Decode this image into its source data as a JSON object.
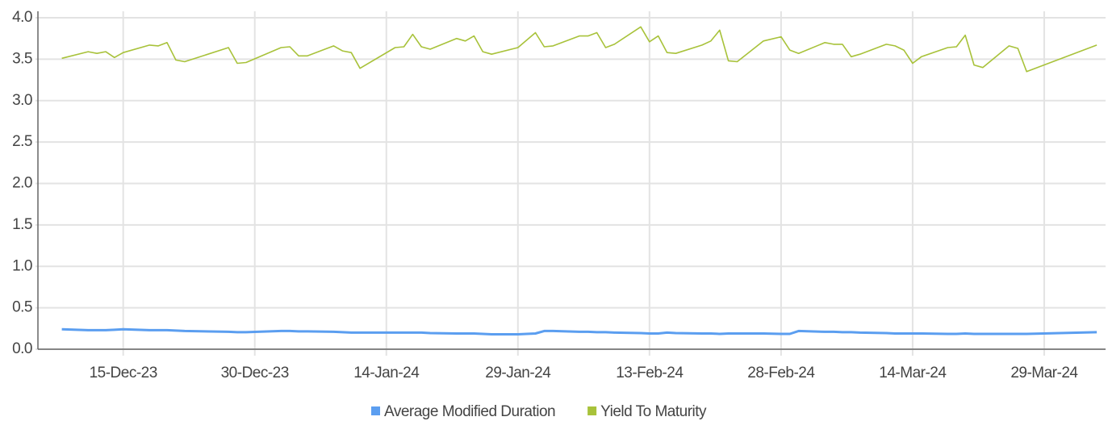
{
  "chart_data": {
    "type": "line",
    "x": [
      "08-Dec-23",
      "11-Dec-23",
      "12-Dec-23",
      "13-Dec-23",
      "14-Dec-23",
      "15-Dec-23",
      "18-Dec-23",
      "19-Dec-23",
      "20-Dec-23",
      "21-Dec-23",
      "22-Dec-23",
      "27-Dec-23",
      "28-Dec-23",
      "29-Dec-23",
      "02-Jan-24",
      "03-Jan-24",
      "04-Jan-24",
      "05-Jan-24",
      "08-Jan-24",
      "09-Jan-24",
      "10-Jan-24",
      "11-Jan-24",
      "15-Jan-24",
      "16-Jan-24",
      "17-Jan-24",
      "18-Jan-24",
      "19-Jan-24",
      "22-Jan-24",
      "23-Jan-24",
      "24-Jan-24",
      "25-Jan-24",
      "26-Jan-24",
      "29-Jan-24",
      "31-Jan-24",
      "01-Feb-24",
      "02-Feb-24",
      "05-Feb-24",
      "06-Feb-24",
      "07-Feb-24",
      "08-Feb-24",
      "09-Feb-24",
      "12-Feb-24",
      "13-Feb-24",
      "14-Feb-24",
      "15-Feb-24",
      "16-Feb-24",
      "19-Feb-24",
      "20-Feb-24",
      "21-Feb-24",
      "22-Feb-24",
      "23-Feb-24",
      "26-Feb-24",
      "28-Feb-24",
      "29-Feb-24",
      "01-Mar-24",
      "04-Mar-24",
      "05-Mar-24",
      "06-Mar-24",
      "07-Mar-24",
      "08-Mar-24",
      "11-Mar-24",
      "12-Mar-24",
      "13-Mar-24",
      "14-Mar-24",
      "15-Mar-24",
      "18-Mar-24",
      "19-Mar-24",
      "20-Mar-24",
      "21-Mar-24",
      "22-Mar-24",
      "25-Mar-24",
      "26-Mar-24",
      "27-Mar-24",
      "04-Apr-24"
    ],
    "series": [
      {
        "name": "Average Modified Duration",
        "color": "#5b9ef0",
        "values": [
          0.24,
          0.23,
          0.23,
          0.23,
          0.235,
          0.24,
          0.23,
          0.23,
          0.23,
          0.225,
          0.22,
          0.21,
          0.205,
          0.205,
          0.22,
          0.22,
          0.215,
          0.215,
          0.21,
          0.205,
          0.2,
          0.2,
          0.2,
          0.2,
          0.2,
          0.2,
          0.195,
          0.19,
          0.19,
          0.19,
          0.185,
          0.18,
          0.18,
          0.19,
          0.22,
          0.22,
          0.21,
          0.21,
          0.205,
          0.205,
          0.2,
          0.195,
          0.19,
          0.19,
          0.2,
          0.195,
          0.19,
          0.19,
          0.185,
          0.19,
          0.19,
          0.19,
          0.185,
          0.185,
          0.22,
          0.21,
          0.21,
          0.205,
          0.205,
          0.2,
          0.195,
          0.19,
          0.19,
          0.19,
          0.19,
          0.185,
          0.185,
          0.19,
          0.185,
          0.185,
          0.185,
          0.185,
          0.185,
          0.205
        ]
      },
      {
        "name": "Yield To Maturity",
        "color": "#a8c23a",
        "values": [
          3.51,
          3.59,
          3.57,
          3.59,
          3.52,
          3.58,
          3.67,
          3.66,
          3.7,
          3.49,
          3.47,
          3.64,
          3.45,
          3.46,
          3.64,
          3.65,
          3.54,
          3.54,
          3.66,
          3.6,
          3.58,
          3.39,
          3.64,
          3.65,
          3.8,
          3.65,
          3.62,
          3.75,
          3.72,
          3.78,
          3.59,
          3.56,
          3.64,
          3.82,
          3.65,
          3.66,
          3.78,
          3.78,
          3.82,
          3.64,
          3.68,
          3.89,
          3.71,
          3.78,
          3.58,
          3.57,
          3.67,
          3.72,
          3.85,
          3.48,
          3.47,
          3.72,
          3.77,
          3.61,
          3.57,
          3.7,
          3.68,
          3.68,
          3.53,
          3.56,
          3.68,
          3.66,
          3.61,
          3.45,
          3.53,
          3.64,
          3.65,
          3.79,
          3.43,
          3.4,
          3.66,
          3.63,
          3.35,
          3.67
        ]
      }
    ],
    "xlim": [
      "05-Dec-23",
      "05-Apr-24"
    ],
    "xticks": [
      "15-Dec-23",
      "30-Dec-23",
      "14-Jan-24",
      "29-Jan-24",
      "13-Feb-24",
      "28-Feb-24",
      "14-Mar-24",
      "29-Mar-24"
    ],
    "ylim": [
      0,
      4
    ],
    "yticks": [
      {
        "value": 0,
        "label": "0.0"
      },
      {
        "value": 0.5,
        "label": "0.5"
      },
      {
        "value": 1,
        "label": "1.0"
      },
      {
        "value": 1.5,
        "label": "1.5"
      },
      {
        "value": 2,
        "label": "2.0"
      },
      {
        "value": 2.5,
        "label": "2.5"
      },
      {
        "value": 3,
        "label": "3.0"
      },
      {
        "value": 3.5,
        "label": "3.5"
      },
      {
        "value": 4,
        "label": "4.0"
      }
    ],
    "grid": true,
    "legend": "bottom"
  }
}
